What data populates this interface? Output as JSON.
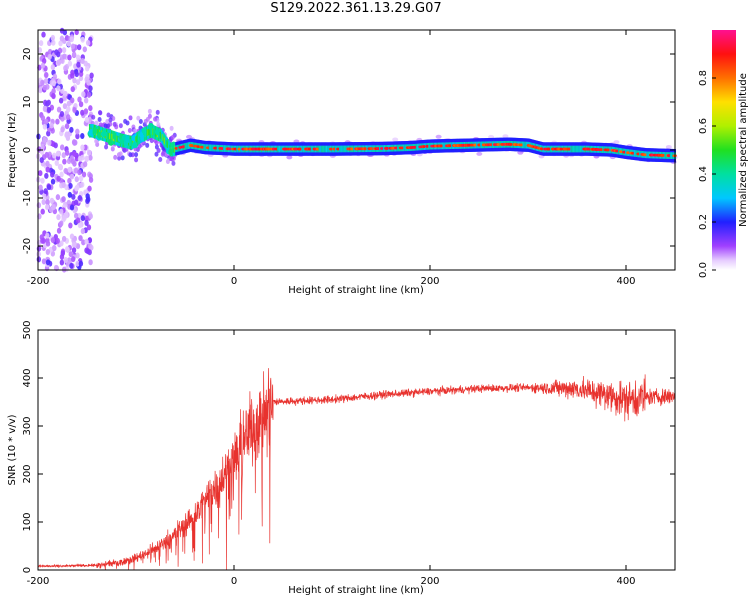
{
  "title": "S129.2022.361.13.29.G07",
  "chart_data": [
    {
      "type": "heatmap",
      "xlabel": "Height of straight line (km)",
      "ylabel": "Frequency (Hz)",
      "xlim": [
        -200,
        450
      ],
      "ylim": [
        -25,
        25
      ],
      "xticks": [
        -200,
        0,
        200,
        400
      ],
      "yticks": [
        -20,
        -10,
        0,
        10,
        20
      ],
      "colorbar": {
        "label": "Normalized spectral amplitude",
        "range": [
          0,
          1
        ],
        "ticks": [
          0.0,
          0.2,
          0.4,
          0.6,
          0.8
        ]
      },
      "ridge": {
        "x": [
          -145,
          -130,
          -115,
          -105,
          -95,
          -85,
          -75,
          -65,
          -55,
          -45,
          -30,
          0,
          50,
          100,
          150,
          180,
          200,
          240,
          280,
          300,
          315,
          340,
          360,
          385,
          400,
          420,
          450
        ],
        "y": [
          4,
          3,
          2,
          1.5,
          3,
          4,
          3,
          0,
          0.5,
          1,
          0.5,
          0.2,
          0.2,
          0.2,
          0.3,
          0.5,
          0.8,
          1.0,
          1.2,
          1.0,
          0.2,
          0.2,
          0.2,
          0.0,
          -0.5,
          -1.0,
          -1.2
        ]
      }
    },
    {
      "type": "line",
      "xlabel": "Height of straight line (km)",
      "ylabel": "SNR (10 * v/v)",
      "xlim": [
        -200,
        450
      ],
      "ylim": [
        0,
        500
      ],
      "xticks": [
        -200,
        0,
        200,
        400
      ],
      "yticks": [
        0,
        100,
        200,
        300,
        400,
        500
      ],
      "color": "#e8322e",
      "series": [
        {
          "x": [
            -200,
            -180,
            -160,
            -140,
            -120,
            -100,
            -80,
            -60,
            -40,
            -20,
            0,
            20,
            40,
            60,
            100,
            150,
            200,
            250,
            300,
            350,
            380,
            400,
            420,
            450
          ],
          "y": [
            8,
            8,
            9,
            10,
            15,
            25,
            45,
            75,
            115,
            170,
            230,
            305,
            350,
            352,
            355,
            365,
            372,
            378,
            380,
            378,
            365,
            355,
            360,
            362
          ]
        }
      ]
    }
  ]
}
